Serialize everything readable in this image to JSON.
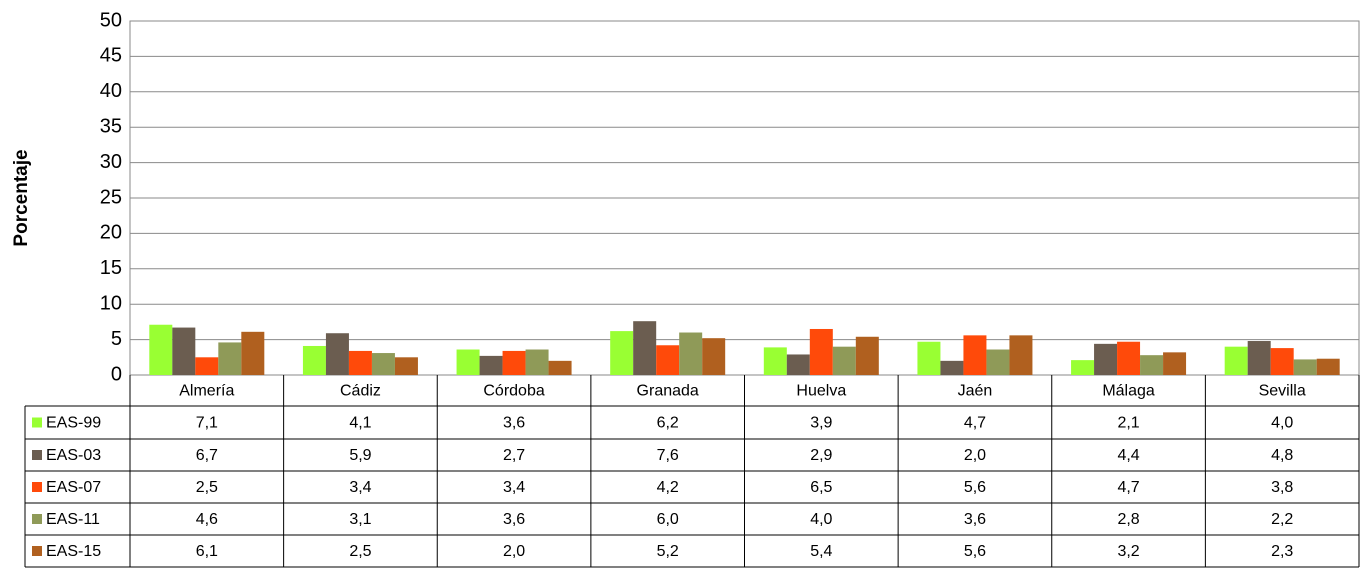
{
  "chart_data": {
    "type": "bar",
    "y_label": "Porcentaje",
    "categories": [
      "Almería",
      "Cádiz",
      "Córdoba",
      "Granada",
      "Huelva",
      "Jaén",
      "Málaga",
      "Sevilla"
    ],
    "series": [
      {
        "name": "EAS-99",
        "color": "#99ff33",
        "values": [
          7.1,
          4.1,
          3.6,
          6.2,
          3.9,
          4.7,
          2.1,
          4.0
        ],
        "value_labels": [
          "7,1",
          "4,1",
          "3,6",
          "6,2",
          "3,9",
          "4,7",
          "2,1",
          "4,0"
        ]
      },
      {
        "name": "EAS-03",
        "color": "#6b5d50",
        "values": [
          6.7,
          5.9,
          2.7,
          7.6,
          2.9,
          2.0,
          4.4,
          4.8
        ],
        "value_labels": [
          "6,7",
          "5,9",
          "2,7",
          "7,6",
          "2,9",
          "2,0",
          "4,4",
          "4,8"
        ]
      },
      {
        "name": "EAS-07",
        "color": "#ff4a0a",
        "values": [
          2.5,
          3.4,
          3.4,
          4.2,
          6.5,
          5.6,
          4.7,
          3.8
        ],
        "value_labels": [
          "2,5",
          "3,4",
          "3,4",
          "4,2",
          "6,5",
          "5,6",
          "4,7",
          "3,8"
        ]
      },
      {
        "name": "EAS-11",
        "color": "#8f9a58",
        "values": [
          4.6,
          3.1,
          3.6,
          6.0,
          4.0,
          3.6,
          2.8,
          2.2
        ],
        "value_labels": [
          "4,6",
          "3,1",
          "3,6",
          "6,0",
          "4,0",
          "3,6",
          "2,8",
          "2,2"
        ]
      },
      {
        "name": "EAS-15",
        "color": "#b0601f",
        "values": [
          6.1,
          2.5,
          2.0,
          5.2,
          5.4,
          5.6,
          3.2,
          2.3
        ],
        "value_labels": [
          "6,1",
          "2,5",
          "2,0",
          "5,2",
          "5,4",
          "5,6",
          "3,2",
          "2,3"
        ]
      }
    ],
    "ylim": [
      0,
      50
    ],
    "yticks": [
      0,
      5,
      10,
      15,
      20,
      25,
      30,
      35,
      40,
      45,
      50
    ],
    "grid": true
  }
}
